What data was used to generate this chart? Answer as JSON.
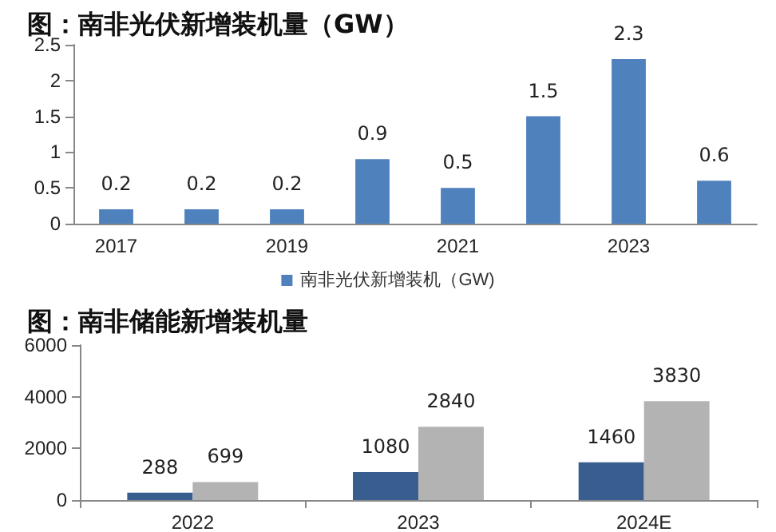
{
  "chart_data": [
    {
      "type": "bar",
      "title": "图：南非光伏新增装机量（GW）",
      "categories": [
        "2017",
        null,
        "2019",
        null,
        "2021",
        null,
        "2023",
        null
      ],
      "series": [
        {
          "name": "南非光伏新增装机（GW)",
          "color": "#4f81bd",
          "values": [
            0.2,
            0.2,
            0.2,
            0.9,
            0.5,
            1.5,
            2.3,
            0.6
          ]
        }
      ],
      "ylim": [
        0,
        2.5
      ],
      "yticks": [
        0,
        0.5,
        1,
        1.5,
        2,
        2.5
      ],
      "data_labels": true,
      "legend": "bottom",
      "grid": false
    },
    {
      "type": "bar",
      "title": "图：南非储能新增装机量",
      "categories": [
        "2022",
        "2023",
        "2024E"
      ],
      "series": [
        {
          "color": "#375e8f",
          "values": [
            288,
            1080,
            1460
          ]
        },
        {
          "color": "#b3b3b3",
          "values": [
            699,
            2840,
            3830
          ]
        }
      ],
      "ylim": [
        0,
        6000
      ],
      "yticks": [
        0,
        2000,
        4000,
        6000
      ],
      "data_labels": true,
      "grid": false
    }
  ]
}
